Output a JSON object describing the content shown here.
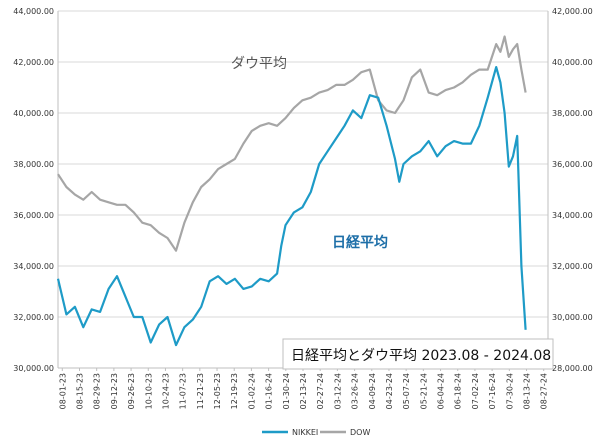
{
  "chart_data": {
    "type": "line",
    "title": "日経平均とダウ平均 2023.08 - 2024.08",
    "annotations": {
      "dow": "ダウ平均",
      "nikkei": "日経平均"
    },
    "x_labels": [
      "08-01-23",
      "08-15-23",
      "08-29-23",
      "09-12-23",
      "09-26-23",
      "10-10-23",
      "10-24-23",
      "11-07-23",
      "11-21-23",
      "12-05-23",
      "12-19-23",
      "01-02-24",
      "01-16-24",
      "01-30-24",
      "02-13-24",
      "02-27-24",
      "03-12-24",
      "03-26-24",
      "04-09-24",
      "04-23-24",
      "05-07-24",
      "05-21-24",
      "06-04-24",
      "06-18-24",
      "07-02-24",
      "07-16-24",
      "07-30-24",
      "08-13-24",
      "08-27-24"
    ],
    "y_left": {
      "ticks": [
        "30,000.00",
        "32,000.00",
        "34,000.00",
        "36,000.00",
        "38,000.00",
        "40,000.00",
        "42,000.00",
        "44,000.00"
      ],
      "min": 30000,
      "max": 44000
    },
    "y_right": {
      "ticks": [
        "28,000.00",
        "30,000.00",
        "32,000.00",
        "34,000.00",
        "36,000.00",
        "38,000.00",
        "40,000.00",
        "42,000.00"
      ],
      "min": 28000,
      "max": 42000
    },
    "grid": true,
    "legend_position": "bottom",
    "series": [
      {
        "name": "NIKKEI",
        "axis": "left",
        "color": "#1e9bc7",
        "points": [
          [
            0,
            33500
          ],
          [
            2,
            32100
          ],
          [
            4,
            32400
          ],
          [
            6,
            31600
          ],
          [
            8,
            32300
          ],
          [
            10,
            32200
          ],
          [
            12,
            33100
          ],
          [
            14,
            33600
          ],
          [
            16,
            32800
          ],
          [
            18,
            32000
          ],
          [
            20,
            32000
          ],
          [
            22,
            31000
          ],
          [
            24,
            31700
          ],
          [
            26,
            32000
          ],
          [
            28,
            30900
          ],
          [
            30,
            31600
          ],
          [
            32,
            31900
          ],
          [
            34,
            32400
          ],
          [
            36,
            33400
          ],
          [
            38,
            33600
          ],
          [
            40,
            33300
          ],
          [
            42,
            33500
          ],
          [
            44,
            33100
          ],
          [
            46,
            33200
          ],
          [
            48,
            33500
          ],
          [
            50,
            33400
          ],
          [
            52,
            33700
          ],
          [
            53,
            34800
          ],
          [
            54,
            35600
          ],
          [
            56,
            36100
          ],
          [
            58,
            36300
          ],
          [
            60,
            36900
          ],
          [
            62,
            38000
          ],
          [
            64,
            38500
          ],
          [
            66,
            39000
          ],
          [
            68,
            39500
          ],
          [
            70,
            40100
          ],
          [
            72,
            39800
          ],
          [
            74,
            40700
          ],
          [
            76,
            40600
          ],
          [
            78,
            39500
          ],
          [
            80,
            38200
          ],
          [
            81,
            37300
          ],
          [
            82,
            38000
          ],
          [
            84,
            38300
          ],
          [
            86,
            38500
          ],
          [
            88,
            38900
          ],
          [
            90,
            38300
          ],
          [
            92,
            38700
          ],
          [
            94,
            38900
          ],
          [
            96,
            38800
          ],
          [
            98,
            38800
          ],
          [
            100,
            39500
          ],
          [
            102,
            40600
          ],
          [
            104,
            41800
          ],
          [
            105,
            41200
          ],
          [
            106,
            40000
          ],
          [
            107,
            37900
          ],
          [
            108,
            38300
          ],
          [
            109,
            39100
          ],
          [
            110,
            34000
          ],
          [
            111,
            31500
          ]
        ]
      },
      {
        "name": "DOW",
        "axis": "right",
        "color": "#a6a6a6",
        "points": [
          [
            0,
            35600
          ],
          [
            2,
            35100
          ],
          [
            4,
            34800
          ],
          [
            6,
            34600
          ],
          [
            8,
            34900
          ],
          [
            10,
            34600
          ],
          [
            12,
            34500
          ],
          [
            14,
            34400
          ],
          [
            16,
            34400
          ],
          [
            18,
            34100
          ],
          [
            20,
            33700
          ],
          [
            22,
            33600
          ],
          [
            24,
            33300
          ],
          [
            26,
            33100
          ],
          [
            28,
            32600
          ],
          [
            30,
            33700
          ],
          [
            32,
            34500
          ],
          [
            34,
            35100
          ],
          [
            36,
            35400
          ],
          [
            38,
            35800
          ],
          [
            40,
            36000
          ],
          [
            42,
            36200
          ],
          [
            44,
            36800
          ],
          [
            46,
            37300
          ],
          [
            48,
            37500
          ],
          [
            50,
            37600
          ],
          [
            52,
            37500
          ],
          [
            54,
            37800
          ],
          [
            56,
            38200
          ],
          [
            58,
            38500
          ],
          [
            60,
            38600
          ],
          [
            62,
            38800
          ],
          [
            64,
            38900
          ],
          [
            66,
            39100
          ],
          [
            68,
            39100
          ],
          [
            70,
            39300
          ],
          [
            72,
            39600
          ],
          [
            74,
            39700
          ],
          [
            76,
            38500
          ],
          [
            78,
            38100
          ],
          [
            80,
            38000
          ],
          [
            82,
            38500
          ],
          [
            84,
            39400
          ],
          [
            86,
            39700
          ],
          [
            88,
            38800
          ],
          [
            90,
            38700
          ],
          [
            92,
            38900
          ],
          [
            94,
            39000
          ],
          [
            96,
            39200
          ],
          [
            98,
            39500
          ],
          [
            100,
            39700
          ],
          [
            102,
            39700
          ],
          [
            104,
            40700
          ],
          [
            105,
            40400
          ],
          [
            106,
            41000
          ],
          [
            107,
            40200
          ],
          [
            108,
            40500
          ],
          [
            109,
            40700
          ],
          [
            110,
            39700
          ],
          [
            111,
            38800
          ]
        ]
      }
    ]
  }
}
